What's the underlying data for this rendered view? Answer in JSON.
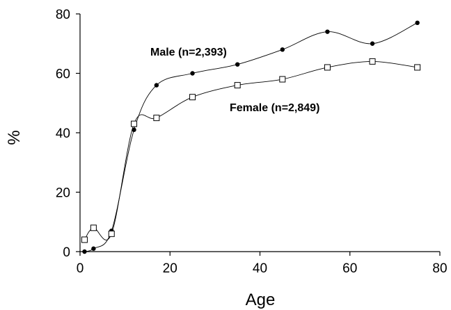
{
  "chart_data": {
    "type": "line",
    "title": "",
    "xlabel": "Age",
    "ylabel": "%",
    "xlim": [
      0,
      80
    ],
    "ylim": [
      0,
      80
    ],
    "xticks": [
      "0",
      "20",
      "40",
      "60",
      "80"
    ],
    "yticks": [
      "0",
      "20",
      "40",
      "60",
      "80"
    ],
    "grid": false,
    "legend": "inline labels",
    "series": [
      {
        "name": "Male (n=2,393)",
        "marker": "filled-circle",
        "color": "#000000",
        "x": [
          1,
          3,
          7,
          12,
          17,
          25,
          35,
          45,
          55,
          65,
          75
        ],
        "y": [
          0,
          1,
          7,
          41,
          56,
          60,
          63,
          68,
          74,
          70,
          77
        ]
      },
      {
        "name": "Female (n=2,849)",
        "marker": "open-square",
        "color": "#000000",
        "x": [
          1,
          3,
          7,
          12,
          17,
          25,
          35,
          45,
          55,
          65,
          75
        ],
        "y": [
          4,
          8,
          6,
          43,
          45,
          52,
          56,
          58,
          62,
          64,
          62
        ]
      }
    ]
  }
}
